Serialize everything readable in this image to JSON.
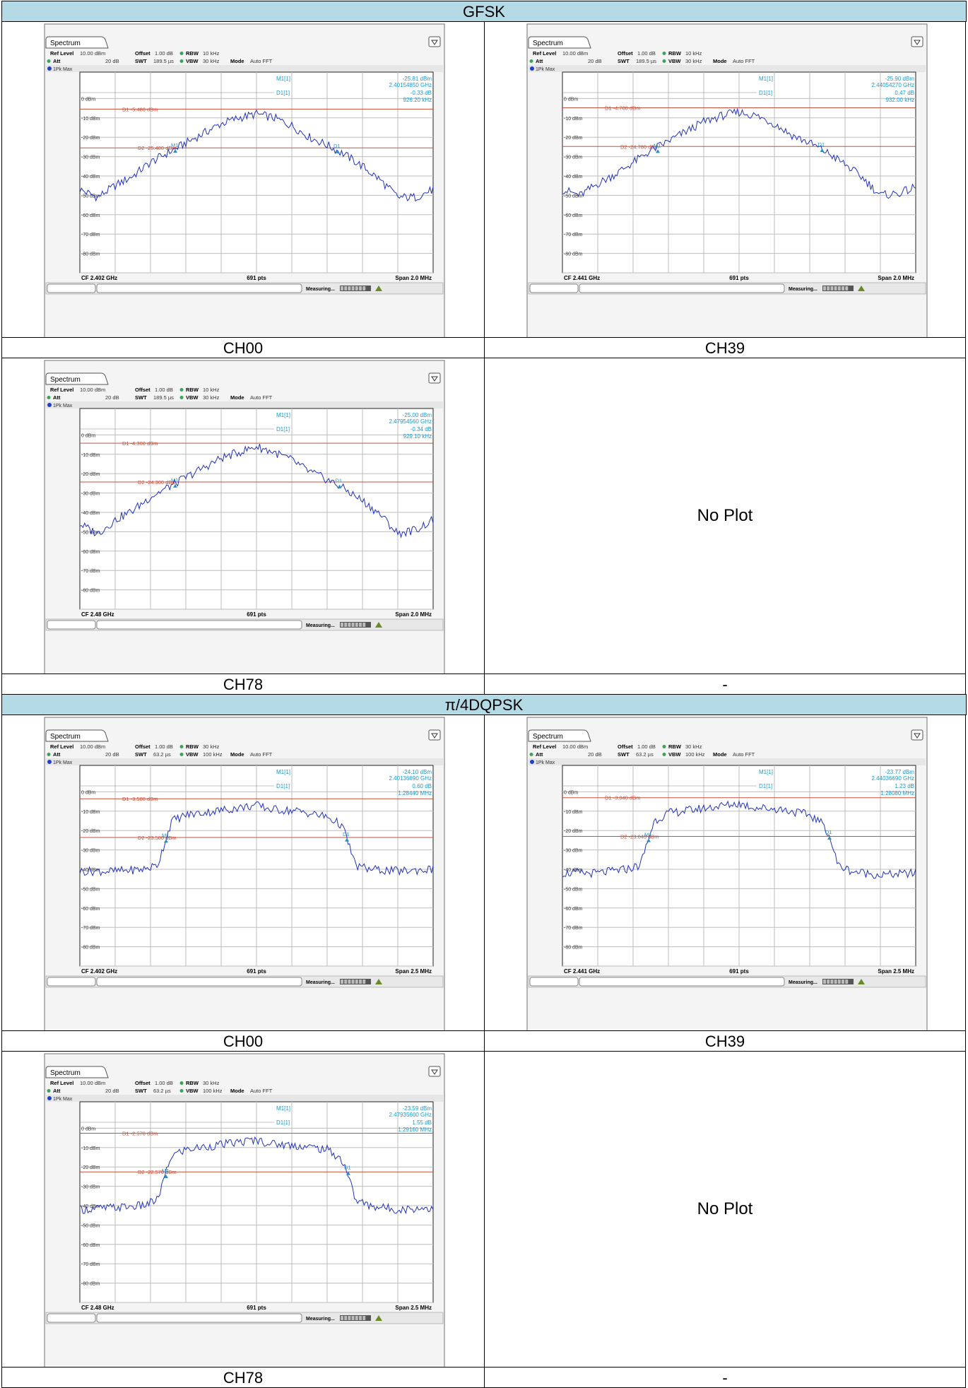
{
  "sections": [
    {
      "title": "GFSK",
      "rows": [
        [
          {
            "caption": "CH00",
            "plot": {
              "tab": "Spectrum",
              "ref_level_label": "Ref Level",
              "ref_level": "10.00 dBm",
              "offset_label": "Offset",
              "offset": "1.00 dB",
              "rbw_label": "RBW",
              "rbw": "10 kHz",
              "att_label": "Att",
              "att": "20 dB",
              "swt_label": "SWT",
              "swt": "189.5 µs",
              "vbw_label": "VBW",
              "vbw": "30 kHz",
              "mode_label": "Mode",
              "mode": "Auto FFT",
              "trace_label": "1Pk Max",
              "m1_label": "M1[1]",
              "m1_level": "-25.81 dBm",
              "m1_freq": "2.40154850 GHz",
              "d1_label": "D1[1]",
              "d1_level": "-0.33 dB",
              "d1_width": "926.20 kHz",
              "d1_line": "D1 -5.480 dBm",
              "d1_value": -5.48,
              "d2_line": "D2 -25.480 dBm",
              "d2_value": -25.48,
              "cf": "CF 2.402 GHz",
              "pts": "691 pts",
              "span": "Span 2.0 MHz",
              "status": "Measuring...",
              "y_ticks": [
                "0 dBm",
                "-10 dBm",
                "-20 dBm",
                "-30 dBm",
                "-40 dBm",
                "-50 dBm",
                "-60 dBm",
                "-70 dBm",
                "-80 dBm"
              ],
              "m1_marker": "M1",
              "d1_marker": "D1"
            }
          },
          {
            "caption": "CH39",
            "plot": {
              "tab": "Spectrum",
              "ref_level_label": "Ref Level",
              "ref_level": "10.00 dBm",
              "offset_label": "Offset",
              "offset": "1.00 dB",
              "rbw_label": "RBW",
              "rbw": "10 kHz",
              "att_label": "Att",
              "att": "20 dB",
              "swt_label": "SWT",
              "swt": "189.5 µs",
              "vbw_label": "VBW",
              "vbw": "30 kHz",
              "mode_label": "Mode",
              "mode": "Auto FFT",
              "trace_label": "1Pk Max",
              "m1_label": "M1[1]",
              "m1_level": "-25.90 dBm",
              "m1_freq": "2.44054270 GHz",
              "d1_label": "D1[1]",
              "d1_level": "0.47 dB",
              "d1_width": "932.00 kHz",
              "d1_line": "D1 -4.780 dBm",
              "d1_value": -4.78,
              "d2_line": "D2 -24.780 dBm",
              "d2_value": -24.78,
              "cf": "CF 2.441 GHz",
              "pts": "691 pts",
              "span": "Span 2.0 MHz",
              "status": "Measuring...",
              "y_ticks": [
                "0 dBm",
                "-10 dBm",
                "-20 dBm",
                "-30 dBm",
                "-40 dBm",
                "-50 dBm",
                "-60 dBm",
                "-70 dBm",
                "-80 dBm"
              ],
              "m1_marker": "M1",
              "d1_marker": "D1"
            }
          }
        ],
        [
          {
            "caption": "CH78",
            "plot": {
              "tab": "Spectrum",
              "ref_level_label": "Ref Level",
              "ref_level": "10.00 dBm",
              "offset_label": "Offset",
              "offset": "1.00 dB",
              "rbw_label": "RBW",
              "rbw": "10 kHz",
              "att_label": "Att",
              "att": "20 dB",
              "swt_label": "SWT",
              "swt": "189.5 µs",
              "vbw_label": "VBW",
              "vbw": "30 kHz",
              "mode_label": "Mode",
              "mode": "Auto FFT",
              "trace_label": "1Pk Max",
              "m1_label": "M1[1]",
              "m1_level": "-25.00 dBm",
              "m1_freq": "2.47954560 GHz",
              "d1_label": "D1[1]",
              "d1_level": "-0.34 dB",
              "d1_width": "929.10 kHz",
              "d1_line": "D1 -4.300 dBm",
              "d1_value": -4.3,
              "d2_line": "D2 -24.300 dBm",
              "d2_value": -24.3,
              "cf": "CF 2.48 GHz",
              "pts": "691 pts",
              "span": "Span 2.0 MHz",
              "status": "Measuring...",
              "y_ticks": [
                "0 dBm",
                "-10 dBm",
                "-20 dBm",
                "-30 dBm",
                "-40 dBm",
                "-50 dBm",
                "-60 dBm",
                "-70 dBm",
                "-80 dBm"
              ],
              "m1_marker": "M1",
              "d1_marker": "D1"
            }
          },
          {
            "caption": "-",
            "noplot": "No Plot"
          }
        ]
      ]
    },
    {
      "title": "π/4DQPSK",
      "rows": [
        [
          {
            "caption": "CH00",
            "plot": {
              "tab": "Spectrum",
              "ref_level_label": "Ref Level",
              "ref_level": "10.00 dBm",
              "offset_label": "Offset",
              "offset": "1.00 dB",
              "rbw_label": "RBW",
              "rbw": "30 kHz",
              "att_label": "Att",
              "att": "20 dB",
              "swt_label": "SWT",
              "swt": "63.2 µs",
              "vbw_label": "VBW",
              "vbw": "100 kHz",
              "mode_label": "Mode",
              "mode": "Auto FFT",
              "trace_label": "1Pk Max",
              "m1_label": "M1[1]",
              "m1_level": "-24.10 dBm",
              "m1_freq": "2.40136690 GHz",
              "d1_label": "D1[1]",
              "d1_level": "0.60 dB",
              "d1_width": "1.28440 MHz",
              "d1_line": "D1 -3.580 dBm",
              "d1_value": -3.58,
              "d2_line": "D2 -23.580 dBm",
              "d2_value": -23.58,
              "cf": "CF 2.402 GHz",
              "pts": "691 pts",
              "span": "Span 2.5 MHz",
              "status": "Measuring...",
              "y_ticks": [
                "0 dBm",
                "-10 dBm",
                "-20 dBm",
                "-30 dBm",
                "-40 dBm",
                "-50 dBm",
                "-60 dBm",
                "-70 dBm",
                "-80 dBm"
              ],
              "m1_marker": "M1",
              "d1_marker": "D1"
            }
          },
          {
            "caption": "CH39",
            "plot": {
              "tab": "Spectrum",
              "ref_level_label": "Ref Level",
              "ref_level": "10.00 dBm",
              "offset_label": "Offset",
              "offset": "1.00 dB",
              "rbw_label": "RBW",
              "rbw": "30 kHz",
              "att_label": "Att",
              "att": "20 dB",
              "swt_label": "SWT",
              "swt": "63.2 µs",
              "vbw_label": "VBW",
              "vbw": "100 kHz",
              "mode_label": "Mode",
              "mode": "Auto FFT",
              "trace_label": "1Pk Max",
              "m1_label": "M1[1]",
              "m1_level": "-23.77 dBm",
              "m1_freq": "2.44036690 GHz",
              "d1_label": "D1[1]",
              "d1_level": "1.23 dB",
              "d1_width": "1.28080 MHz",
              "d1_line": "D1 -3.040 dBm",
              "d1_value": -3.04,
              "d2_line": "D2 -23.040 dBm",
              "d2_value": -23.04,
              "cf": "CF 2.441 GHz",
              "pts": "691 pts",
              "span": "Span 2.5 MHz",
              "status": "Measuring...",
              "y_ticks": [
                "0 dBm",
                "-10 dBm",
                "-20 dBm",
                "-30 dBm",
                "-40 dBm",
                "-50 dBm",
                "-60 dBm",
                "-70 dBm",
                "-80 dBm"
              ],
              "m1_marker": "M1",
              "d1_marker": "D1"
            }
          }
        ],
        [
          {
            "caption": "CH78",
            "plot": {
              "tab": "Spectrum",
              "ref_level_label": "Ref Level",
              "ref_level": "10.00 dBm",
              "offset_label": "Offset",
              "offset": "1.00 dB",
              "rbw_label": "RBW",
              "rbw": "30 kHz",
              "att_label": "Att",
              "att": "20 dB",
              "swt_label": "SWT",
              "swt": "63.2 µs",
              "vbw_label": "VBW",
              "vbw": "100 kHz",
              "mode_label": "Mode",
              "mode": "Auto FFT",
              "trace_label": "1Pk Max",
              "m1_label": "M1[1]",
              "m1_level": "-23.59 dBm",
              "m1_freq": "2.47935600 GHz",
              "d1_label": "D1[1]",
              "d1_level": "1.55 dB",
              "d1_width": "1.29160 MHz",
              "d1_line": "D1 -2.570 dBm",
              "d1_value": -2.57,
              "d2_line": "D2 -22.570 dBm",
              "d2_value": -22.57,
              "cf": "CF 2.48 GHz",
              "pts": "691 pts",
              "span": "Span 2.5 MHz",
              "status": "Measuring...",
              "y_ticks": [
                "0 dBm",
                "-10 dBm",
                "-20 dBm",
                "-30 dBm",
                "-40 dBm",
                "-50 dBm",
                "-60 dBm",
                "-70 dBm",
                "-80 dBm"
              ],
              "m1_marker": "M1",
              "d1_marker": "D1"
            }
          },
          {
            "caption": "-",
            "noplot": "No Plot"
          }
        ]
      ]
    }
  ],
  "colors": {
    "header_bg": "#b4dae6",
    "trace": "#2233bb",
    "display_line": "#c8503c",
    "marker": "#2a8fbf",
    "readout": "#1a9ad0"
  },
  "chart_data": [
    {
      "type": "line",
      "title": "Spectrum",
      "section": "GFSK",
      "channel": "CH00",
      "xlabel": "CF 2.402 GHz",
      "x_span_mhz": 2.0,
      "ylim": [
        -90,
        10
      ],
      "grid": true,
      "x": [
        -1.0,
        -0.9,
        -0.8,
        -0.7,
        -0.6,
        -0.5,
        -0.4,
        -0.3,
        -0.2,
        -0.1,
        0.0,
        0.1,
        0.2,
        0.3,
        0.4,
        0.5,
        0.6,
        0.7,
        0.8,
        0.9,
        1.0
      ],
      "series": [
        {
          "values": [
            -47,
            -51,
            -45,
            -40,
            -33,
            -28,
            -23,
            -18,
            -13,
            -10,
            -8,
            -10,
            -14,
            -20,
            -24,
            -29,
            -35,
            -42,
            -51,
            -51,
            -47
          ]
        }
      ],
      "markers": [
        {
          "label": "M1",
          "x": -0.46,
          "y": -25.81
        },
        {
          "label": "D1",
          "x": 0.46,
          "y": -26.1
        }
      ],
      "lines": [
        {
          "label": "D1",
          "y": -5.48
        },
        {
          "label": "D2",
          "y": -25.48
        }
      ]
    },
    {
      "type": "line",
      "title": "Spectrum",
      "section": "GFSK",
      "channel": "CH39",
      "xlabel": "CF 2.441 GHz",
      "x_span_mhz": 2.0,
      "ylim": [
        -90,
        10
      ],
      "grid": true,
      "x": [
        -1.0,
        -0.9,
        -0.8,
        -0.7,
        -0.6,
        -0.5,
        -0.4,
        -0.3,
        -0.2,
        -0.1,
        0.0,
        0.1,
        0.2,
        0.3,
        0.4,
        0.5,
        0.6,
        0.7,
        0.8,
        0.9,
        1.0
      ],
      "series": [
        {
          "values": [
            -47,
            -50,
            -44,
            -39,
            -33,
            -27,
            -22,
            -17,
            -12,
            -9,
            -7,
            -9,
            -13,
            -19,
            -23,
            -28,
            -34,
            -41,
            -50,
            -49,
            -46
          ]
        }
      ],
      "markers": [
        {
          "label": "M1",
          "x": -0.46,
          "y": -25.9
        },
        {
          "label": "D1",
          "x": 0.47,
          "y": -25.4
        }
      ],
      "lines": [
        {
          "label": "D1",
          "y": -4.78
        },
        {
          "label": "D2",
          "y": -24.78
        }
      ]
    },
    {
      "type": "line",
      "title": "Spectrum",
      "section": "GFSK",
      "channel": "CH78",
      "xlabel": "CF 2.48 GHz",
      "x_span_mhz": 2.0,
      "ylim": [
        -90,
        10
      ],
      "grid": true,
      "x": [
        -1.0,
        -0.9,
        -0.8,
        -0.7,
        -0.6,
        -0.5,
        -0.4,
        -0.3,
        -0.2,
        -0.1,
        0.0,
        0.1,
        0.2,
        0.3,
        0.4,
        0.5,
        0.6,
        0.7,
        0.8,
        0.9,
        1.0
      ],
      "series": [
        {
          "values": [
            -46,
            -51,
            -44,
            -39,
            -32,
            -27,
            -22,
            -17,
            -12,
            -9,
            -6,
            -9,
            -13,
            -19,
            -23,
            -28,
            -34,
            -41,
            -51,
            -49,
            -44
          ]
        }
      ],
      "markers": [
        {
          "label": "M1",
          "x": -0.46,
          "y": -25.0
        },
        {
          "label": "D1",
          "x": 0.47,
          "y": -25.3
        }
      ],
      "lines": [
        {
          "label": "D1",
          "y": -4.3
        },
        {
          "label": "D2",
          "y": -24.3
        }
      ]
    },
    {
      "type": "line",
      "title": "Spectrum",
      "section": "π/4DQPSK",
      "channel": "CH00",
      "xlabel": "CF 2.402 GHz",
      "x_span_mhz": 2.5,
      "ylim": [
        -90,
        10
      ],
      "grid": true,
      "x": [
        -1.25,
        -1.0,
        -0.8,
        -0.7,
        -0.64,
        -0.6,
        -0.5,
        -0.3,
        -0.1,
        0.0,
        0.1,
        0.3,
        0.5,
        0.6,
        0.64,
        0.7,
        0.8,
        1.0,
        1.25
      ],
      "series": [
        {
          "values": [
            -41,
            -41,
            -40,
            -38,
            -24,
            -15,
            -12,
            -10,
            -8,
            -7,
            -9,
            -10,
            -13,
            -17,
            -24,
            -38,
            -40,
            -41,
            -40
          ]
        }
      ],
      "markers": [
        {
          "label": "M1",
          "x": -0.64,
          "y": -24.1
        },
        {
          "label": "D1",
          "x": 0.64,
          "y": -23.5
        }
      ],
      "lines": [
        {
          "label": "D1",
          "y": -3.58
        },
        {
          "label": "D2",
          "y": -23.58
        }
      ]
    },
    {
      "type": "line",
      "title": "Spectrum",
      "section": "π/4DQPSK",
      "channel": "CH39",
      "xlabel": "CF 2.441 GHz",
      "x_span_mhz": 2.5,
      "ylim": [
        -90,
        10
      ],
      "grid": true,
      "x": [
        -1.25,
        -1.0,
        -0.8,
        -0.7,
        -0.64,
        -0.6,
        -0.5,
        -0.3,
        -0.1,
        0.0,
        0.1,
        0.3,
        0.5,
        0.6,
        0.64,
        0.7,
        0.8,
        1.0,
        1.25
      ],
      "series": [
        {
          "values": [
            -42,
            -42,
            -40,
            -38,
            -24,
            -15,
            -11,
            -9,
            -7,
            -6,
            -8,
            -9,
            -12,
            -17,
            -23,
            -38,
            -41,
            -43,
            -42
          ]
        }
      ],
      "markers": [
        {
          "label": "M1",
          "x": -0.64,
          "y": -23.77
        },
        {
          "label": "D1",
          "x": 0.64,
          "y": -22.5
        }
      ],
      "lines": [
        {
          "label": "D1",
          "y": -3.04
        },
        {
          "label": "D2",
          "y": -23.04
        }
      ]
    },
    {
      "type": "line",
      "title": "Spectrum",
      "section": "π/4DQPSK",
      "channel": "CH78",
      "xlabel": "CF 2.48 GHz",
      "x_span_mhz": 2.5,
      "ylim": [
        -90,
        10
      ],
      "grid": true,
      "x": [
        -1.25,
        -1.0,
        -0.8,
        -0.7,
        -0.64,
        -0.6,
        -0.5,
        -0.3,
        -0.1,
        0.0,
        0.1,
        0.3,
        0.5,
        0.6,
        0.64,
        0.7,
        0.8,
        1.0,
        1.25
      ],
      "series": [
        {
          "values": [
            -42,
            -41,
            -40,
            -37,
            -23,
            -14,
            -11,
            -9,
            -7,
            -6,
            -8,
            -9,
            -11,
            -16,
            -22,
            -37,
            -40,
            -42,
            -41
          ]
        }
      ],
      "markers": [
        {
          "label": "M1",
          "x": -0.64,
          "y": -23.59
        },
        {
          "label": "D1",
          "x": 0.65,
          "y": -22.0
        }
      ],
      "lines": [
        {
          "label": "D1",
          "y": -2.57
        },
        {
          "label": "D2",
          "y": -22.57
        }
      ]
    }
  ]
}
